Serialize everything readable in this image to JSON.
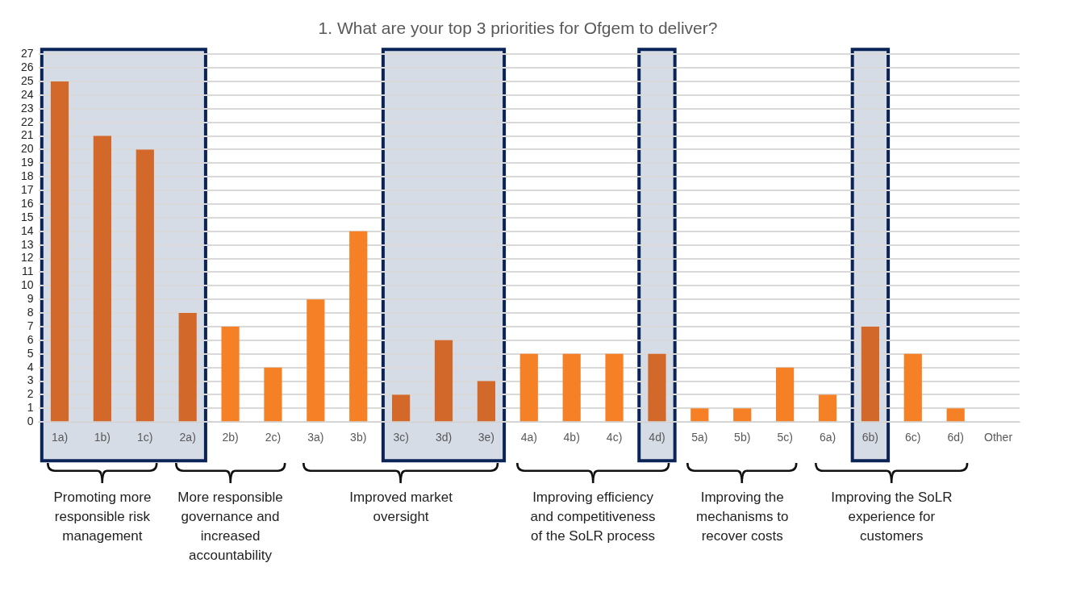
{
  "chart_data": {
    "type": "bar",
    "title": "1. What are your top 3 priorities for Ofgem to deliver?",
    "categories": [
      "1a)",
      "1b)",
      "1c)",
      "2a)",
      "2b)",
      "2c)",
      "3a)",
      "3b)",
      "3c)",
      "3d)",
      "3e)",
      "4a)",
      "4b)",
      "4c)",
      "4d)",
      "5a)",
      "5b)",
      "5c)",
      "6a)",
      "6b)",
      "6c)",
      "6d)",
      "Other"
    ],
    "values": [
      25,
      21,
      20,
      8,
      7,
      4,
      9,
      14,
      2,
      6,
      3,
      5,
      5,
      5,
      5,
      1,
      1,
      4,
      2,
      7,
      5,
      1,
      0
    ],
    "colors": [
      "#d2692a",
      "#d2692a",
      "#d2692a",
      "#d2692a",
      "#f58025",
      "#f58025",
      "#f58025",
      "#f58025",
      "#d2692a",
      "#d2692a",
      "#d2692a",
      "#f58025",
      "#f58025",
      "#f58025",
      "#d2692a",
      "#f58025",
      "#f58025",
      "#f58025",
      "#f58025",
      "#d2692a",
      "#f58025",
      "#f58025",
      "#f58025"
    ],
    "ylim": [
      0,
      27
    ],
    "yticks": [
      0,
      1,
      2,
      3,
      4,
      5,
      6,
      7,
      8,
      9,
      10,
      11,
      12,
      13,
      14,
      15,
      16,
      17,
      18,
      19,
      20,
      21,
      22,
      23,
      24,
      25,
      26,
      27
    ],
    "grid": "y",
    "bands": [
      {
        "axis": "x",
        "from": "1a)",
        "to": "2a)",
        "color": "#d6dce5"
      },
      {
        "axis": "x",
        "from": "3c)",
        "to": "3e)",
        "color": "#d6dce5"
      },
      {
        "axis": "x",
        "from": "4d)",
        "to": "4d)",
        "color": "#d6dce5"
      },
      {
        "axis": "x",
        "from": "6b)",
        "to": "6b)",
        "color": "#d6dce5"
      }
    ],
    "annotations": [
      "Promoting more responsible risk management",
      "More responsible governance and increased accountability",
      "Improved market oversight",
      "Improving efficiency and competitiveness of the SoLR process",
      "Improving the mechanisms to recover costs",
      "Improving the SoLR experience for customers"
    ]
  }
}
